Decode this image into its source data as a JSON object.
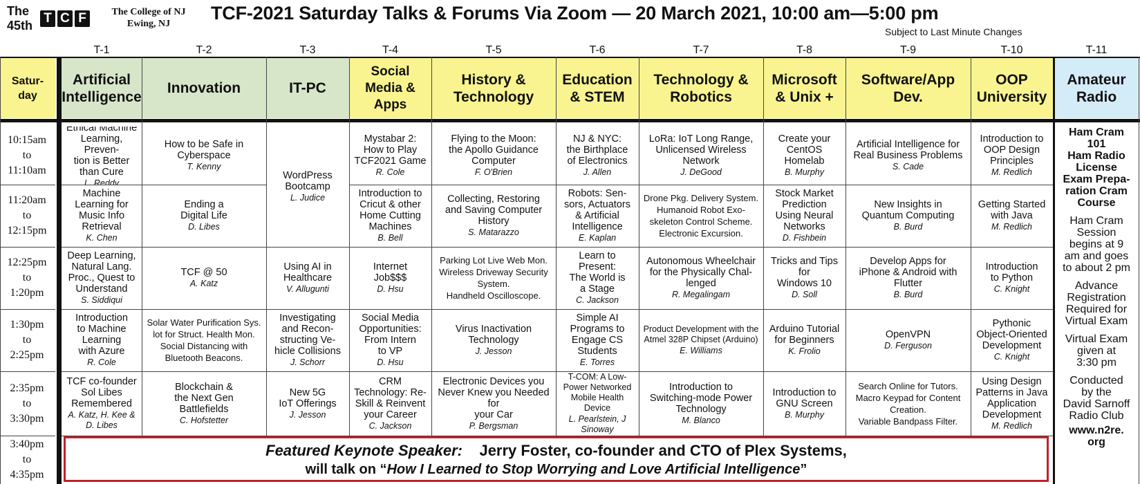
{
  "header": {
    "the": "The",
    "edition": "45th",
    "logo_letters": [
      "T",
      "C",
      "F"
    ],
    "college_line1": "The College of NJ",
    "college_line2": "Ewing, NJ",
    "title": "TCF-2021 Saturday Talks & Forums Via Zoom — 20 March 2021, 10:00 am—5:00 pm",
    "subject_note": "Subject to Last Minute Changes"
  },
  "day_label": "Satur-\nday",
  "tracks": [
    {
      "num": "T-1",
      "name": "Artificial\nIntelligence",
      "color": "#d7e6c9"
    },
    {
      "num": "T-2",
      "name": "Innovation",
      "color": "#d7e6c9"
    },
    {
      "num": "T-3",
      "name": "IT-PC",
      "color": "#d7e6c9"
    },
    {
      "num": "T-4",
      "name": "Social\nMedia & Apps",
      "color": "#faf490"
    },
    {
      "num": "T-5",
      "name": "History &\nTechnology",
      "color": "#faf490"
    },
    {
      "num": "T-6",
      "name": "Education\n& STEM",
      "color": "#faf490"
    },
    {
      "num": "T-7",
      "name": "Technology &\nRobotics",
      "color": "#faf490"
    },
    {
      "num": "T-8",
      "name": "Microsoft\n& Unix +",
      "color": "#faf490"
    },
    {
      "num": "T-9",
      "name": "Software/App\nDev.",
      "color": "#faf490"
    },
    {
      "num": "T-10",
      "name": "OOP\nUniversity",
      "color": "#faf490"
    },
    {
      "num": "T-11",
      "name": "Amateur\nRadio",
      "color": "#d4ecf8"
    }
  ],
  "times": [
    {
      "start": "10:15am",
      "to": "to",
      "end": "11:10am"
    },
    {
      "start": "11:20am",
      "to": "to",
      "end": "12:15pm"
    },
    {
      "start": "12:25pm",
      "to": "to",
      "end": "1:20pm"
    },
    {
      "start": "1:30pm",
      "to": "to",
      "end": "2:25pm"
    },
    {
      "start": "2:35pm",
      "to": "to",
      "end": "3:30pm"
    },
    {
      "start": "3:40pm",
      "to": "to",
      "end": "4:35pm"
    }
  ],
  "sessions": {
    "r1": [
      {
        "title": "Ethical Machine\nLearning, Preven-\ntion is Better\nthan Cure",
        "speaker": "L. Reddy"
      },
      {
        "title": "How to be Safe in\nCyberspace",
        "speaker": "T. Kenny"
      },
      null,
      {
        "title": "Mystabar 2:\nHow to Play\nTCF2021 Game",
        "speaker": "R. Cole"
      },
      {
        "title": "Flying to the Moon:\nthe Apollo Guidance\nComputer",
        "speaker": "F. O'Brien"
      },
      {
        "title": "NJ & NYC:\nthe Birthplace\nof Electronics",
        "speaker": "J. Allen"
      },
      {
        "title": "LoRa: IoT Long Range,\nUnlicensed Wireless\nNetwork",
        "speaker": "J. DeGood"
      },
      {
        "title": "Create your\nCentOS\nHomelab",
        "speaker": "B. Murphy"
      },
      {
        "title": "Artificial Intelligence for\nReal Business Problems",
        "speaker": "S. Cade"
      },
      {
        "title": "Introduction to\nOOP Design\nPrinciples",
        "speaker": "M. Redlich"
      }
    ],
    "t3_merged": {
      "title": "WordPress\nBootcamp",
      "speaker": "L. Judice"
    },
    "r2": [
      {
        "title": "Machine\nLearning for\nMusic Info\nRetrieval",
        "speaker": "K. Chen"
      },
      {
        "title": "Ending a\nDigital Life",
        "speaker": "D. Libes"
      },
      null,
      {
        "title": "Introduction to\nCricut & other\nHome Cutting\nMachines",
        "speaker": "B. Bell"
      },
      {
        "title": "Collecting, Restoring\nand Saving Computer\nHistory",
        "speaker": "S. Matarazzo"
      },
      {
        "title": "Robots: Sen-\nsors, Actuators\n& Artificial\nIntelligence",
        "speaker": "E. Kaplan"
      },
      {
        "items": [
          "Drone Pkg. Delivery System.",
          "Humanoid Robot Exo-",
          "skeleton Control Scheme.",
          "Electronic Excursion."
        ]
      },
      {
        "title": "Stock Market\nPrediction\nUsing Neural\nNetworks",
        "speaker": "D. Fishbein"
      },
      {
        "title": "New Insights in\nQuantum Computing",
        "speaker": "B. Burd"
      },
      {
        "title": "Getting Started\nwith Java",
        "speaker": "M. Redlich"
      }
    ],
    "r3": [
      {
        "title": "Deep Learning,\nNatural Lang.\nProc., Quest to\nUnderstand",
        "speaker": "S. Siddiqui"
      },
      {
        "title": "TCF @ 50",
        "speaker": "A. Katz"
      },
      {
        "title": "Using AI in\nHealthcare",
        "speaker": "V. Allugunti"
      },
      {
        "title": "Internet\nJob$$$",
        "speaker": "D. Hsu"
      },
      {
        "items": [
          "Parking Lot Live Web Mon.",
          "Wireless Driveway Security",
          "System.",
          "Handheld Oscilloscope."
        ]
      },
      {
        "title": "Learn to\nPresent:\nThe World is\na Stage",
        "speaker": "C. Jackson"
      },
      {
        "title": "Autonomous Wheelchair\nfor the Physically Chal-\nlenged",
        "speaker": "R. Megalingam"
      },
      {
        "title": "Tricks and Tips\nfor\nWindows 10",
        "speaker": "D. Soll"
      },
      {
        "title": "Develop Apps for\niPhone & Android with\nFlutter",
        "speaker": "B. Burd"
      },
      {
        "title": "Introduction\nto Python",
        "speaker": "C. Knight"
      }
    ],
    "r4": [
      {
        "title": "Introduction\nto Machine\nLearning\nwith Azure",
        "speaker": "R. Cole"
      },
      {
        "items": [
          "Solar Water Purification Sys.",
          "lot for Struct. Health Mon.",
          "Social Distancing with",
          "Bluetooth Beacons."
        ]
      },
      {
        "title": "Investigating\nand Recon-\nstructing Ve-\nhicle Collisions",
        "speaker": "J. Schorr"
      },
      {
        "title": "Social Media\nOpportunities:\nFrom Intern\nto VP",
        "speaker": "D. Hsu"
      },
      {
        "title": "Virus Inactivation\nTechnology",
        "speaker": "J. Jesson"
      },
      {
        "title": "Simple AI\nPrograms to\nEngage CS\nStudents",
        "speaker": "E. Torres"
      },
      {
        "title": "Product Development with the\nAtmel 328P Chipset (Arduino)",
        "speaker": "E. Williams",
        "small": true
      },
      {
        "title": "Arduino Tutorial\nfor Beginners",
        "speaker": "K. Frolio"
      },
      {
        "title": "OpenVPN",
        "speaker": "D. Ferguson"
      },
      {
        "title": "Pythonic\nObject-Oriented\nDevelopment",
        "speaker": "C. Knight"
      }
    ],
    "r5": [
      {
        "title": "TCF co-founder\nSol Libes\nRemembered",
        "speaker": "A. Katz, H. Kee &\nD. Libes"
      },
      {
        "title": "Blockchain &\nthe Next Gen\nBattlefields",
        "speaker": "C. Hofstetter"
      },
      {
        "title": "New 5G\nIoT Offerings",
        "speaker": "J. Jesson"
      },
      {
        "title": "CRM\nTechnology: Re-\nSkill & Reinvent\nyour Career",
        "speaker": "C. Jackson"
      },
      {
        "title": "Electronic Devices you\nNever Knew you Needed for\nyour Car",
        "speaker": "P. Bergsman"
      },
      {
        "title": "T-COM: A Low-\nPower Networked\nMobile Health\nDevice",
        "speaker": "L. Pearlstein, J Sinoway",
        "small": true
      },
      {
        "title": "Introduction to\nSwitching-mode Power\nTechnology",
        "speaker": "M. Blanco"
      },
      {
        "title": "Introduction to\nGNU Screen",
        "speaker": "B. Murphy"
      },
      {
        "items": [
          "Search Online for Tutors.",
          "Macro Keypad for Content",
          "Creation.",
          "Variable Bandpass Filter."
        ]
      },
      {
        "title": "Using Design\nPatterns in Java\nApplication\nDevelopment",
        "speaker": "M. Redlich"
      }
    ]
  },
  "radio": {
    "bold_block": "Ham Cram\n101\nHam Radio\nLicense\nExam Prepa-\nration Cram\nCourse",
    "p1": "Ham Cram\nSession\nbegins at 9\nam and goes\nto about 2 pm",
    "p2": "Advance\nRegistration\nRequired for\nVirtual Exam",
    "p3": "Virtual Exam\ngiven at\n3:30 pm",
    "p4": "Conducted\nby the\nDavid Sarnoff\nRadio Club",
    "url": "www.n2re.\norg"
  },
  "keynote": {
    "label": "Featured Keynote Speaker:",
    "speaker": "Jerry Foster, co-founder and CTO of Plex Systems,",
    "line2_prefix": "will talk on “",
    "talk_title": "How I Learned to Stop Worrying and Love Artificial Intelligence",
    "line2_suffix": "”",
    "border_color": "#c0202a"
  }
}
